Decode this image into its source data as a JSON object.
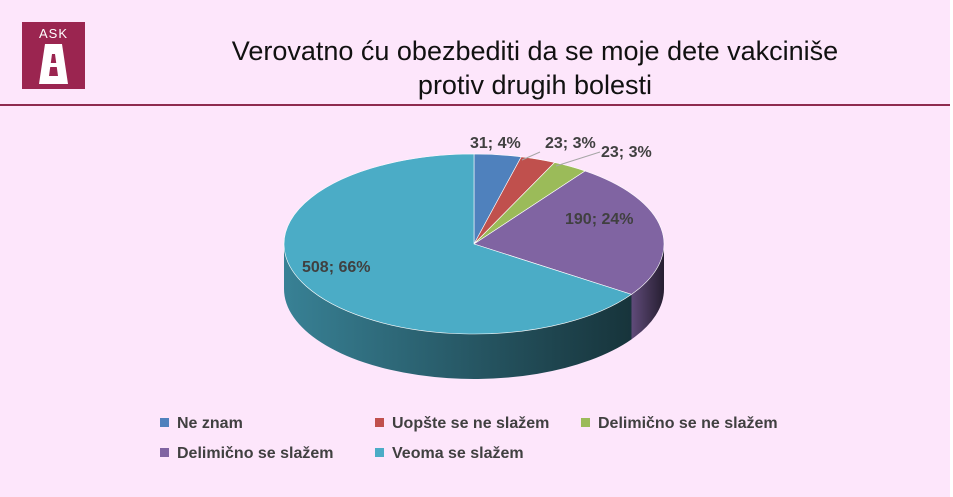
{
  "header": {
    "logo_text": "ASK",
    "title_line1": "Verovatno ću obezbediti da se moje dete vakciniše",
    "title_line2": "protiv drugih bolesti"
  },
  "colors": {
    "background": "#fde6fb",
    "header_rule": "#8e2b4f",
    "logo_bg": "#9b2550"
  },
  "chart_data": {
    "type": "pie",
    "style": "3d",
    "legend_position": "bottom",
    "title": "Verovatno ću obezbediti da se moje dete vakciniše protiv drugih bolesti",
    "slices": [
      {
        "name": "Ne znam",
        "value": 31,
        "percent": 4,
        "label": "31; 4%",
        "color": "#4f81bd"
      },
      {
        "name": "Uopšte se ne slažem",
        "value": 23,
        "percent": 3,
        "label": "23; 3%",
        "color": "#c0504d"
      },
      {
        "name": "Delimično se ne slažem",
        "value": 23,
        "percent": 3,
        "label": "23; 3%",
        "color": "#9bbb59"
      },
      {
        "name": "Delimično se slažem",
        "value": 190,
        "percent": 24,
        "label": "190; 24%",
        "color": "#8064a2"
      },
      {
        "name": "Veoma se slažem",
        "value": 508,
        "percent": 66,
        "label": "508; 66%",
        "color": "#4bacc6"
      }
    ]
  }
}
